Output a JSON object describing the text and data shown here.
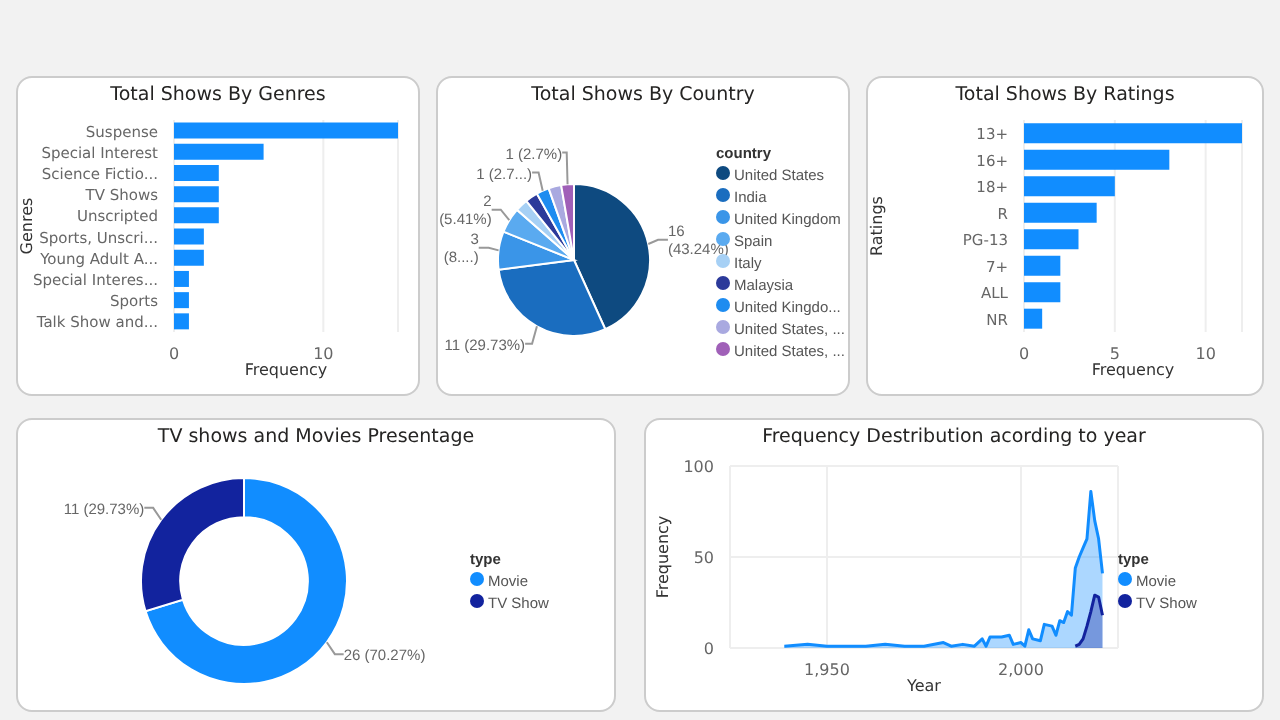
{
  "chart_data": [
    {
      "type": "bar",
      "orientation": "horizontal",
      "title": "Total Shows By Genres",
      "xlabel": "Frequency",
      "ylabel": "Genres",
      "categories": [
        "Suspense",
        "Special Interest",
        "Science Fictio...",
        "TV Shows",
        "Unscripted",
        "Sports, Unscri...",
        "Young Adult A...",
        "Special Interes...",
        "Sports",
        "Talk Show and..."
      ],
      "values": [
        15,
        6,
        3,
        3,
        3,
        2,
        2,
        1,
        1,
        1
      ],
      "color": "#118dff",
      "xlim": [
        0,
        15
      ],
      "xticks": [
        0,
        10
      ],
      "grid": "x"
    },
    {
      "type": "pie",
      "title": "Total Shows By Country",
      "legend_title": "country",
      "legend": "right",
      "categories": [
        "United States",
        "India",
        "United Kingdom",
        "Spain",
        "Italy",
        "Malaysia",
        "United Kingdo...",
        "United States, ...",
        "United States, ..."
      ],
      "values": [
        16,
        11,
        3,
        2,
        1,
        1,
        1,
        1,
        1
      ],
      "colors": [
        "#0e4a80",
        "#1a6dbf",
        "#3a95e8",
        "#5aaaf0",
        "#a6d0f5",
        "#2c3a9a",
        "#1e8cf0",
        "#a9a9e0",
        "#a060b8"
      ],
      "value_labels": [
        "16 (43.24%)",
        "11 (29.73%)",
        "3 (8....)",
        "2 (5.41%)",
        null,
        null,
        "1 (2.7...)",
        null,
        "1 (2.7%)"
      ]
    },
    {
      "type": "bar",
      "orientation": "horizontal",
      "title": "Total Shows By Ratings",
      "xlabel": "Frequency",
      "ylabel": "Ratings",
      "categories": [
        "13+",
        "16+",
        "18+",
        "R",
        "PG-13",
        "7+",
        "ALL",
        "NR"
      ],
      "values": [
        12,
        8,
        5,
        4,
        3,
        2,
        2,
        1
      ],
      "color": "#118dff",
      "xlim": [
        0,
        12
      ],
      "xticks": [
        0,
        5,
        10
      ],
      "grid": "x"
    },
    {
      "type": "donut",
      "title": "TV shows and Movies Presentage",
      "legend_title": "type",
      "legend": "right",
      "categories": [
        "Movie",
        "TV Show"
      ],
      "values": [
        26,
        11
      ],
      "colors": [
        "#118dff",
        "#12239e"
      ],
      "value_labels": [
        "26 (70.27%)",
        "11 (29.73%)"
      ]
    },
    {
      "type": "area",
      "title": "Frequency Destribution acording to year",
      "xlabel": "Year",
      "ylabel": "Frequency",
      "legend_title": "type",
      "legend": "right",
      "xlim": [
        1925,
        2025
      ],
      "xticks": [
        {
          "value": 1950,
          "label": "1,950"
        },
        {
          "value": 2000,
          "label": "2,000"
        }
      ],
      "ylim": [
        0,
        100
      ],
      "yticks": [
        0,
        50,
        100
      ],
      "grid": true,
      "marker": "none",
      "series": [
        {
          "name": "Movie",
          "color": "#118dff",
          "x": [
            1939,
            1945,
            1950,
            1955,
            1960,
            1965,
            1970,
            1975,
            1980,
            1982,
            1985,
            1988,
            1990,
            1991,
            1992,
            1995,
            1997,
            1998,
            2000,
            2001,
            2002,
            2003,
            2005,
            2006,
            2008,
            2009,
            2010,
            2011,
            2012,
            2013,
            2014,
            2015,
            2016,
            2017,
            2018,
            2019,
            2020,
            2021
          ],
          "values": [
            1,
            2,
            1,
            1,
            1,
            2,
            1,
            1,
            3,
            1,
            2,
            1,
            5,
            1,
            6,
            6,
            7,
            2,
            3,
            1,
            10,
            5,
            4,
            13,
            12,
            7,
            15,
            14,
            20,
            18,
            44,
            50,
            55,
            60,
            86,
            70,
            60,
            41
          ]
        },
        {
          "name": "TV Show",
          "color": "#12239e",
          "x": [
            2014,
            2015,
            2016,
            2017,
            2018,
            2019,
            2020,
            2021
          ],
          "values": [
            1,
            2,
            5,
            12,
            20,
            29,
            28,
            18
          ]
        }
      ]
    }
  ]
}
